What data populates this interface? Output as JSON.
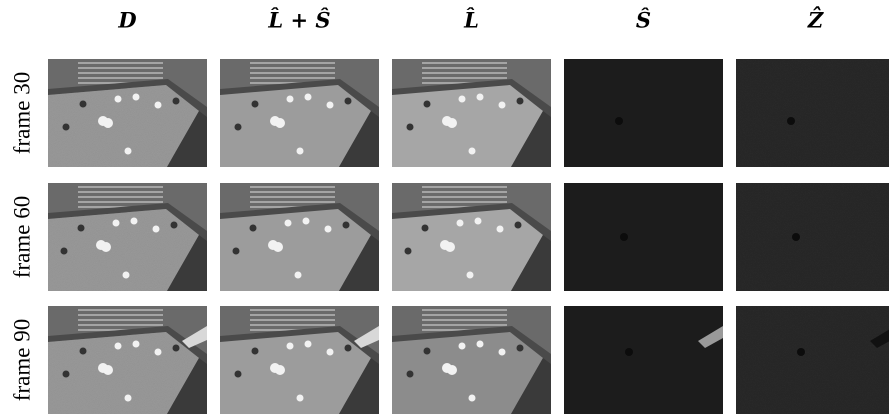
{
  "columns": [
    "D",
    "L̂ + Ŝ",
    "L̂",
    "Ŝ",
    "Ẑ"
  ],
  "rows": [
    "frame 30",
    "frame 60",
    "frame 90"
  ]
}
